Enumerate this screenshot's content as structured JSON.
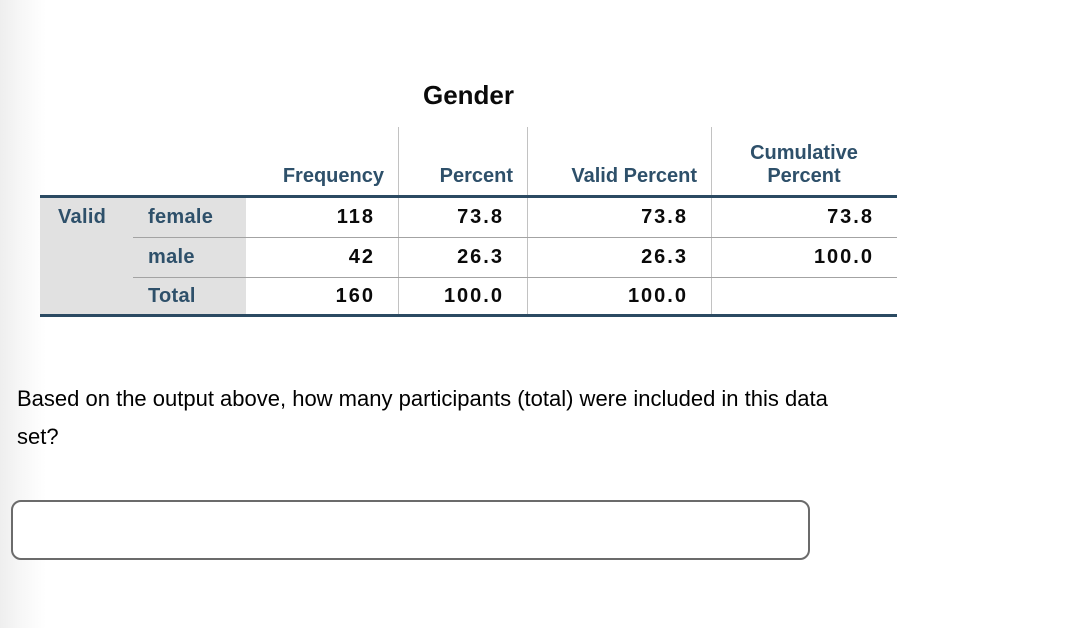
{
  "spss_table": {
    "title": "Gender",
    "row_group_label": "Valid",
    "columns": {
      "frequency": "Frequency",
      "percent": "Percent",
      "valid_percent": "Valid Percent",
      "cumulative_percent_line1": "Cumulative",
      "cumulative_percent_line2": "Percent"
    },
    "rows": [
      {
        "label": "female",
        "frequency": "118",
        "percent": "73.8",
        "valid_percent": "73.8",
        "cumulative_percent": "73.8"
      },
      {
        "label": "male",
        "frequency": "42",
        "percent": "26.3",
        "valid_percent": "26.3",
        "cumulative_percent": "100.0"
      },
      {
        "label": "Total",
        "frequency": "160",
        "percent": "100.0",
        "valid_percent": "100.0",
        "cumulative_percent": ""
      }
    ]
  },
  "question": {
    "text": "Based on the output above, how many participants (total) were included in this data set?",
    "lines": [
      "Based on the output above, how many participants (total) were included in this data",
      "set?"
    ]
  },
  "answer_input": {
    "value": "",
    "placeholder": ""
  },
  "colors": {
    "table_header_text": "#2e506a",
    "table_border_navy": "#2b4a62",
    "label_background": "#e1e1e1",
    "input_border": "#6b6b6b"
  }
}
